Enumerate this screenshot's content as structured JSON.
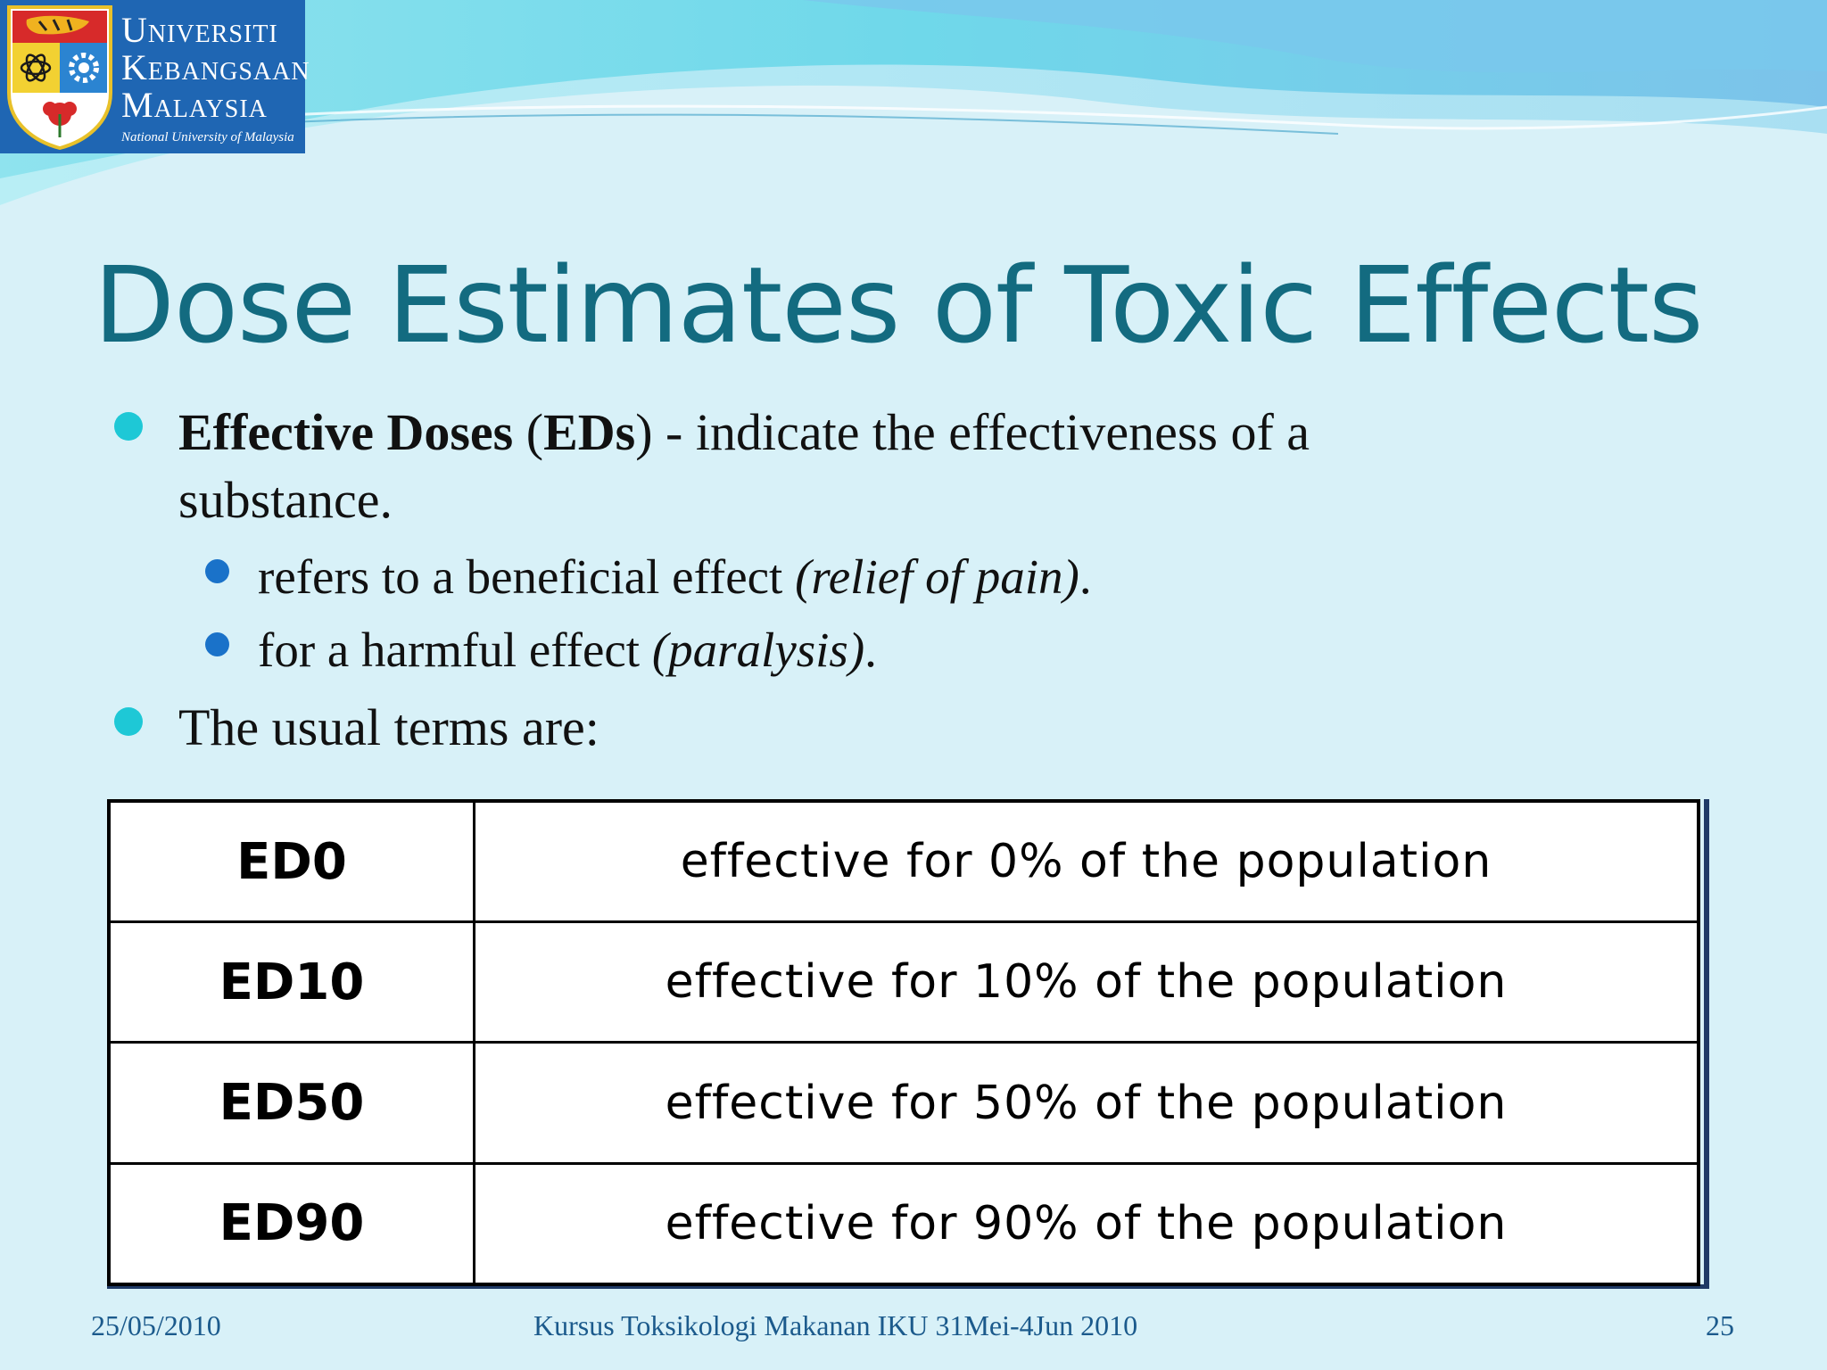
{
  "logo": {
    "line1": "Universiti",
    "line2": "Kebangsaan",
    "line3": "Malaysia",
    "tagline": "National University of Malaysia"
  },
  "title": "Dose Estimates of Toxic Effects",
  "bullets": {
    "b1_bold": "Effective Doses",
    "b1_open": " (",
    "b1_abbr": "EDs",
    "b1_rest": ") - indicate the effectiveness of a",
    "b1_cont": "substance.",
    "sub1_text": "refers to a beneficial effect ",
    "sub1_italic": "(relief of pain)",
    "sub1_end": ".",
    "sub2_text": "for a harmful effect ",
    "sub2_italic": "(paralysis)",
    "sub2_end": ".",
    "b2": "The usual terms are:"
  },
  "table": {
    "rows": [
      {
        "term": "ED0",
        "desc": "effective for 0% of the population"
      },
      {
        "term": "ED10",
        "desc": "effective for 10% of the population"
      },
      {
        "term": "ED50",
        "desc": "effective for 50% of the population"
      },
      {
        "term": "ED90",
        "desc": "effective for 90% of the population"
      }
    ]
  },
  "footer": {
    "date": "25/05/2010",
    "course": "Kursus Toksikologi Makanan IKU 31Mei-4Jun 2010",
    "page": "25"
  },
  "colors": {
    "background": "#d8f1f8",
    "title": "#136b80",
    "bullet_main": "#1ec8d6",
    "bullet_sub": "#1a72c9",
    "logo_bg": "#1f66b3",
    "footer": "#1b5a8c"
  },
  "icons": {
    "main_bullet": "filled-circle",
    "sub_bullet": "filled-circle",
    "crest": "university-crest-icon"
  }
}
